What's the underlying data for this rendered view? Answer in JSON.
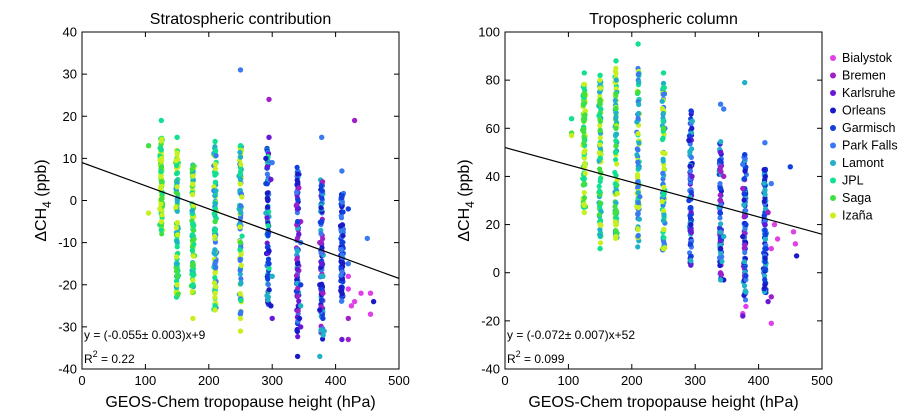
{
  "chart_data": [
    {
      "type": "scatter",
      "title": "Stratospheric contribution",
      "xlabel": "GEOS-Chem tropopause height (hPa)",
      "ylabel": "ΔCH4 (ppb)",
      "xlim": [
        0,
        500
      ],
      "ylim": [
        -40,
        40
      ],
      "xticks": [
        0,
        100,
        200,
        300,
        400,
        500
      ],
      "yticks": [
        -40,
        -30,
        -20,
        -10,
        0,
        10,
        20,
        30,
        40
      ],
      "fit_line": {
        "slope": -0.055,
        "intercept": 9
      },
      "annotation": {
        "equation": "y = (-0.055± 0.003)x+9",
        "r2_label": "R",
        "r2_sup": "2",
        "r2_value": " = 0.22"
      },
      "series": [
        {
          "name": "Bialystok",
          "color": "#e040e8",
          "points": [
            [
              420,
              -21
            ],
            [
              425,
              -25
            ],
            [
              440,
              -22
            ],
            [
              455,
              -27
            ],
            [
              455,
              -22
            ],
            [
              420,
              -18
            ],
            [
              430,
              -24
            ]
          ]
        },
        {
          "name": "Bremen",
          "color": "#a020c8",
          "points": [
            [
              295,
              24
            ],
            [
              430,
              19
            ],
            [
              342,
              3
            ],
            [
              345,
              -5
            ],
            [
              375,
              -10
            ],
            [
              420,
              -28
            ],
            [
              420,
              -33
            ],
            [
              380,
              -22
            ]
          ]
        },
        {
          "name": "Karlsruhe",
          "color": "#6a18d8",
          "points": [
            [
              295,
              15
            ],
            [
              298,
              5
            ],
            [
              340,
              -2
            ],
            [
              342,
              -8
            ],
            [
              378,
              -15
            ],
            [
              410,
              -33
            ],
            [
              345,
              -30
            ],
            [
              300,
              -28
            ]
          ]
        },
        {
          "name": "Orleans",
          "color": "#1a1ac8",
          "points": [
            [
              290,
              10
            ],
            [
              293,
              0
            ],
            [
              295,
              -12
            ],
            [
              298,
              -25
            ],
            [
              340,
              -15
            ],
            [
              343,
              -28
            ],
            [
              340,
              -37
            ],
            [
              375,
              -20
            ],
            [
              375,
              -26
            ],
            [
              460,
              -24
            ]
          ]
        },
        {
          "name": "Garmisch",
          "color": "#1040e0",
          "points": [
            [
              290,
              4
            ],
            [
              295,
              -15
            ],
            [
              340,
              -5
            ],
            [
              345,
              -20
            ],
            [
              378,
              -5
            ],
            [
              380,
              -28
            ],
            [
              410,
              -10
            ],
            [
              420,
              -2
            ]
          ]
        },
        {
          "name": "Park Falls",
          "color": "#3a7af0",
          "points": [
            [
              250,
              31
            ],
            [
              378,
              15
            ],
            [
              410,
              7
            ],
            [
              300,
              9
            ],
            [
              345,
              -10
            ],
            [
              420,
              -15
            ],
            [
              450,
              -9
            ]
          ]
        },
        {
          "name": "Lamont",
          "color": "#20b0c8",
          "points": [
            [
              250,
              5
            ],
            [
              290,
              -3
            ],
            [
              300,
              -18
            ],
            [
              340,
              -12
            ],
            [
              345,
              -25
            ],
            [
              380,
              -18
            ],
            [
              375,
              -37
            ],
            [
              382,
              -31
            ]
          ]
        },
        {
          "name": "JPL",
          "color": "#10e090",
          "points": [
            [
              125,
              19
            ],
            [
              150,
              15
            ],
            [
              210,
              14
            ],
            [
              250,
              13
            ],
            [
              210,
              -25
            ],
            [
              175,
              -20
            ],
            [
              125,
              12
            ]
          ]
        },
        {
          "name": "Saga",
          "color": "#40e040",
          "points": [
            [
              105,
              13
            ],
            [
              125,
              8
            ],
            [
              150,
              -18
            ],
            [
              175,
              -15
            ],
            [
              210,
              -5
            ],
            [
              250,
              -10
            ]
          ]
        },
        {
          "name": "Izaña",
          "color": "#c8f020",
          "points": [
            [
              105,
              -3
            ],
            [
              125,
              -5
            ],
            [
              150,
              -20
            ],
            [
              175,
              -28
            ],
            [
              210,
              -26
            ],
            [
              250,
              -31
            ],
            [
              250,
              -28
            ],
            [
              210,
              -22
            ]
          ]
        }
      ],
      "columns": [
        {
          "x": 125,
          "y_range": [
            -8,
            15
          ],
          "colors": [
            "Izaña",
            "Saga",
            "JPL"
          ]
        },
        {
          "x": 150,
          "y_range": [
            -23,
            12
          ],
          "colors": [
            "Izaña",
            "Saga",
            "JPL",
            "Lamont"
          ]
        },
        {
          "x": 175,
          "y_range": [
            -22,
            9
          ],
          "colors": [
            "Izaña",
            "Saga",
            "JPL",
            "Lamont"
          ]
        },
        {
          "x": 210,
          "y_range": [
            -26,
            13
          ],
          "colors": [
            "Izaña",
            "JPL",
            "Lamont",
            "Park Falls"
          ]
        },
        {
          "x": 250,
          "y_range": [
            -27,
            13
          ],
          "colors": [
            "Izaña",
            "JPL",
            "Lamont",
            "Park Falls"
          ]
        },
        {
          "x": 293,
          "y_range": [
            -25,
            13
          ],
          "colors": [
            "Lamont",
            "Park Falls",
            "Garmisch",
            "Orleans",
            "Karlsruhe",
            "JPL"
          ]
        },
        {
          "x": 340,
          "y_range": [
            -33,
            8
          ],
          "colors": [
            "Orleans",
            "Garmisch",
            "Park Falls",
            "Lamont",
            "Karlsruhe",
            "Bremen"
          ]
        },
        {
          "x": 378,
          "y_range": [
            -33,
            5
          ],
          "colors": [
            "Orleans",
            "Garmisch",
            "Park Falls",
            "Lamont",
            "Bremen"
          ]
        },
        {
          "x": 410,
          "y_range": [
            -24,
            2
          ],
          "colors": [
            "Park Falls",
            "Garmisch",
            "Orleans"
          ]
        }
      ]
    },
    {
      "type": "scatter",
      "title": "Tropospheric column",
      "xlabel": "GEOS-Chem tropopause height (hPa)",
      "ylabel": "ΔCH4 (ppb)",
      "xlim": [
        0,
        500
      ],
      "ylim": [
        -40,
        100
      ],
      "xticks": [
        0,
        100,
        200,
        300,
        400,
        500
      ],
      "yticks": [
        -40,
        -20,
        0,
        20,
        40,
        60,
        80,
        100
      ],
      "fit_line": {
        "slope": -0.072,
        "intercept": 52
      },
      "annotation": {
        "equation": "y = (-0.072± 0.007)x+52",
        "r2_label": "R",
        "r2_sup": "2",
        "r2_value": " = 0.099"
      },
      "series": [
        {
          "name": "Bialystok",
          "color": "#e040e8",
          "points": [
            [
              375,
              -17
            ],
            [
              380,
              -14
            ],
            [
              420,
              -21
            ],
            [
              420,
              10
            ],
            [
              430,
              14
            ],
            [
              455,
              17
            ],
            [
              458,
              12
            ],
            [
              425,
              20
            ]
          ]
        },
        {
          "name": "Bremen",
          "color": "#a020c8",
          "points": [
            [
              340,
              30
            ],
            [
              345,
              40
            ],
            [
              375,
              35
            ],
            [
              420,
              -10
            ],
            [
              415,
              25
            ]
          ]
        },
        {
          "name": "Karlsruhe",
          "color": "#6a18d8",
          "points": [
            [
              295,
              40
            ],
            [
              340,
              50
            ],
            [
              375,
              -18
            ],
            [
              410,
              20
            ],
            [
              415,
              -12
            ]
          ]
        },
        {
          "name": "Orleans",
          "color": "#1a1ac8",
          "points": [
            [
              290,
              55
            ],
            [
              293,
              20
            ],
            [
              340,
              10
            ],
            [
              345,
              -3
            ],
            [
              375,
              15
            ],
            [
              410,
              -5
            ],
            [
              460,
              7
            ]
          ]
        },
        {
          "name": "Garmisch",
          "color": "#1040e0",
          "points": [
            [
              290,
              30
            ],
            [
              340,
              35
            ],
            [
              380,
              20
            ],
            [
              410,
              10
            ],
            [
              450,
              44
            ]
          ]
        },
        {
          "name": "Park Falls",
          "color": "#3a7af0",
          "points": [
            [
              340,
              70
            ],
            [
              345,
              68
            ],
            [
              410,
              54
            ],
            [
              420,
              37
            ],
            [
              375,
              45
            ]
          ]
        },
        {
          "name": "Lamont",
          "color": "#20b0c8",
          "points": [
            [
              250,
              10
            ],
            [
              293,
              5
            ],
            [
              340,
              -3
            ],
            [
              378,
              79
            ],
            [
              380,
              -8
            ],
            [
              345,
              15
            ]
          ]
        },
        {
          "name": "JPL",
          "color": "#10e090",
          "points": [
            [
              125,
              83
            ],
            [
              150,
              82
            ],
            [
              175,
              88
            ],
            [
              210,
              95
            ],
            [
              250,
              83
            ],
            [
              150,
              10
            ],
            [
              105,
              64
            ]
          ]
        },
        {
          "name": "Saga",
          "color": "#40e040",
          "points": [
            [
              105,
              58
            ],
            [
              125,
              65
            ],
            [
              150,
              70
            ],
            [
              175,
              60
            ],
            [
              210,
              75
            ],
            [
              250,
              60
            ]
          ]
        },
        {
          "name": "Izaña",
          "color": "#c8f020",
          "points": [
            [
              105,
              57
            ],
            [
              125,
              28
            ],
            [
              150,
              20
            ],
            [
              175,
              15
            ],
            [
              210,
              18
            ],
            [
              250,
              10
            ],
            [
              125,
              25
            ]
          ]
        }
      ],
      "columns": [
        {
          "x": 125,
          "y_range": [
            27,
            80
          ],
          "colors": [
            "Izaña",
            "Saga",
            "JPL"
          ]
        },
        {
          "x": 150,
          "y_range": [
            12,
            80
          ],
          "colors": [
            "Izaña",
            "Saga",
            "JPL",
            "Lamont"
          ]
        },
        {
          "x": 175,
          "y_range": [
            14,
            85
          ],
          "colors": [
            "Izaña",
            "Saga",
            "JPL",
            "Lamont"
          ]
        },
        {
          "x": 210,
          "y_range": [
            10,
            85
          ],
          "colors": [
            "Izaña",
            "JPL",
            "Lamont",
            "Park Falls"
          ]
        },
        {
          "x": 250,
          "y_range": [
            9,
            79
          ],
          "colors": [
            "Izaña",
            "JPL",
            "Lamont",
            "Park Falls"
          ]
        },
        {
          "x": 293,
          "y_range": [
            2,
            68
          ],
          "colors": [
            "Lamont",
            "Park Falls",
            "Garmisch",
            "Orleans",
            "Karlsruhe"
          ]
        },
        {
          "x": 340,
          "y_range": [
            -4,
            55
          ],
          "colors": [
            "Orleans",
            "Garmisch",
            "Park Falls",
            "Lamont",
            "Karlsruhe",
            "Bremen"
          ]
        },
        {
          "x": 378,
          "y_range": [
            -12,
            50
          ],
          "colors": [
            "Orleans",
            "Garmisch",
            "Park Falls",
            "Lamont",
            "Bremen"
          ]
        },
        {
          "x": 410,
          "y_range": [
            -10,
            43
          ],
          "colors": [
            "Park Falls",
            "Garmisch",
            "Orleans",
            "Lamont"
          ]
        }
      ]
    }
  ],
  "legend": {
    "position": "right of second plot",
    "items": [
      {
        "label": "Bialystok",
        "color": "#e040e8"
      },
      {
        "label": "Bremen",
        "color": "#a020c8"
      },
      {
        "label": "Karlsruhe",
        "color": "#6a18d8"
      },
      {
        "label": "Orleans",
        "color": "#1a1ac8"
      },
      {
        "label": "Garmisch",
        "color": "#1040e0"
      },
      {
        "label": "Park Falls",
        "color": "#3a7af0"
      },
      {
        "label": "Lamont",
        "color": "#20b0c8"
      },
      {
        "label": "JPL",
        "color": "#10e090"
      },
      {
        "label": "Saga",
        "color": "#40e040"
      },
      {
        "label": "Izaña",
        "color": "#c8f020"
      }
    ]
  }
}
